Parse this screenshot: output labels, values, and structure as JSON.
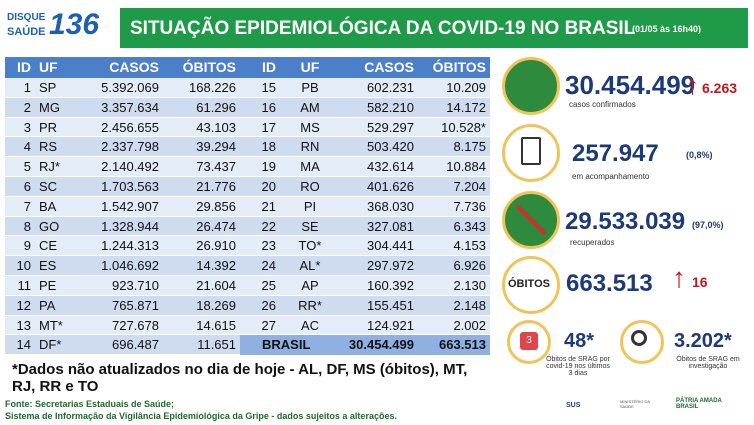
{
  "logo": {
    "line1": "DISQUE",
    "line2": "SAÚDE",
    "number": "136"
  },
  "header": {
    "title": "SITUAÇÃO EPIDEMIOLÓGICA DA COVID-19 NO BRASIL",
    "date": "(01/05 às 16h40)"
  },
  "tables": [
    {
      "columns": [
        "ID",
        "UF",
        "CASOS",
        "ÓBITOS"
      ],
      "rows": [
        [
          "1",
          "SP",
          "5.392.069",
          "168.226"
        ],
        [
          "2",
          "MG",
          "3.357.634",
          "61.296"
        ],
        [
          "3",
          "PR",
          "2.456.655",
          "43.103"
        ],
        [
          "4",
          "RS",
          "2.337.798",
          "39.294"
        ],
        [
          "5",
          "RJ*",
          "2.140.492",
          "73.437"
        ],
        [
          "6",
          "SC",
          "1.703.563",
          "21.776"
        ],
        [
          "7",
          "BA",
          "1.542.907",
          "29.856"
        ],
        [
          "8",
          "GO",
          "1.328.944",
          "26.474"
        ],
        [
          "9",
          "CE",
          "1.244.313",
          "26.910"
        ],
        [
          "10",
          "ES",
          "1.046.692",
          "14.392"
        ],
        [
          "11",
          "PE",
          "923.710",
          "21.604"
        ],
        [
          "12",
          "PA",
          "765.871",
          "18.269"
        ],
        [
          "13",
          "MT*",
          "727.678",
          "14.615"
        ],
        [
          "14",
          "DF*",
          "696.487",
          "11.651"
        ]
      ]
    },
    {
      "columns": [
        "ID",
        "UF",
        "CASOS",
        "ÓBITOS"
      ],
      "rows": [
        [
          "15",
          "PB",
          "602.231",
          "10.209"
        ],
        [
          "16",
          "AM",
          "582.210",
          "14.172"
        ],
        [
          "17",
          "MS",
          "529.297",
          "10.528*"
        ],
        [
          "18",
          "RN",
          "503.420",
          "8.175"
        ],
        [
          "19",
          "MA",
          "432.614",
          "10.884"
        ],
        [
          "20",
          "RO",
          "401.626",
          "7.204"
        ],
        [
          "21",
          "PI",
          "368.030",
          "7.736"
        ],
        [
          "22",
          "SE",
          "327.081",
          "6.343"
        ],
        [
          "23",
          "TO*",
          "304.441",
          "4.153"
        ],
        [
          "24",
          "AL*",
          "297.972",
          "6.926"
        ],
        [
          "25",
          "AP",
          "160.392",
          "2.130"
        ],
        [
          "26",
          "RR*",
          "155.451",
          "2.148"
        ],
        [
          "27",
          "AC",
          "124.921",
          "2.002"
        ]
      ],
      "total": [
        "BRASIL",
        "30.454.499",
        "663.513"
      ]
    }
  ],
  "footnote": "*Dados não atualizados no dia de hoje - AL, DF, MS (óbitos), MT, RJ, RR e TO",
  "sources": [
    "Fonte: Secretarias Estaduais de Saúde;",
    "Sistema de Informação da Vigilância Epidemiológica da Gripe - dados sujeitos a alterações."
  ],
  "stats": [
    {
      "value": "30.454.499",
      "change": "6.263",
      "label": "casos confirmados"
    },
    {
      "value": "257.947",
      "percent": "(0,8%)",
      "label": "em acompanhamento"
    },
    {
      "value": "29.533.039",
      "percent": "(97,0%)",
      "label": "recuperados"
    },
    {
      "title": "ÓBITOS",
      "value": "663.513",
      "change": "16"
    }
  ],
  "small_stats": [
    {
      "icon_text": "3",
      "value": "48*",
      "label": "Óbitos de SRAG por covid-19 nos últimos 3 dias"
    },
    {
      "value": "3.202*",
      "label": "Óbitos de SRAG em investigação"
    }
  ],
  "footer_logos": [
    "SUS",
    "MINISTÉRIO DA SAÚDE",
    "PÁTRIA AMADA BRASIL"
  ]
}
